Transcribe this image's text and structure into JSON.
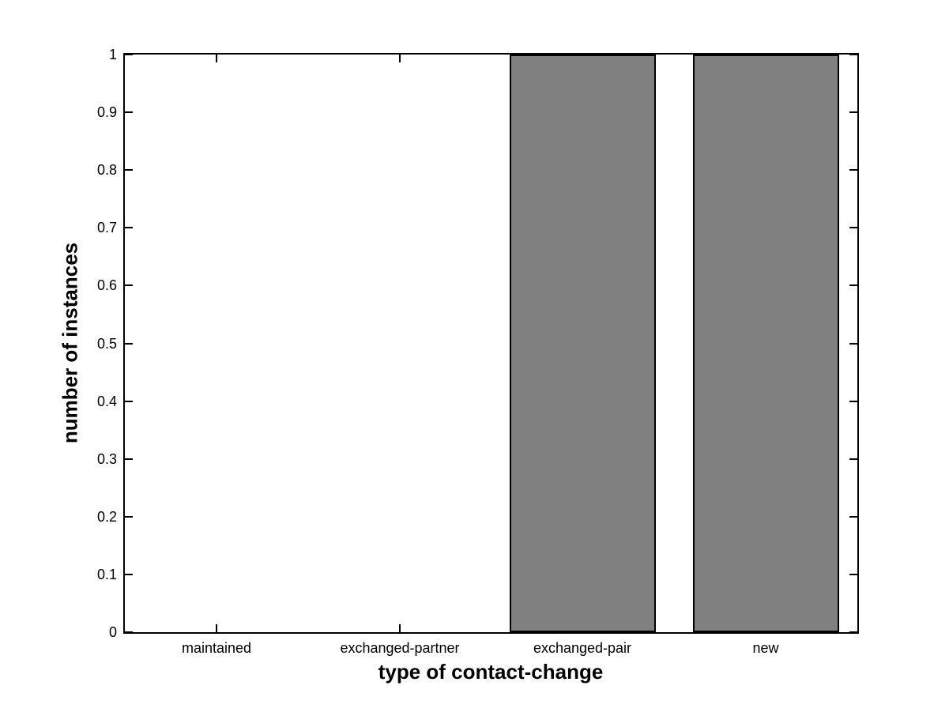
{
  "chart_data": {
    "type": "bar",
    "xlabel": "type of contact-change",
    "ylabel": "number of instances",
    "categories": [
      "maintained",
      "exchanged-partner",
      "exchanged-pair",
      "new"
    ],
    "values": [
      0,
      0,
      1,
      1
    ],
    "ylim": [
      0,
      1
    ],
    "yticks": [
      0,
      0.1,
      0.2,
      0.3,
      0.4,
      0.5,
      0.6,
      0.7,
      0.8,
      0.9,
      1
    ],
    "ytick_labels": [
      "0",
      "0.1",
      "0.2",
      "0.3",
      "0.4",
      "0.5",
      "0.6",
      "0.7",
      "0.8",
      "0.9",
      "1"
    ],
    "bar_width_fraction": 0.8,
    "grid": false,
    "legend": null,
    "axes_box": true,
    "tick_direction": "in",
    "colors": {
      "bar_fill": "#808080",
      "bar_edge": "#000000",
      "axis": "#000000",
      "background": "#ffffff",
      "text": "#000000"
    }
  }
}
